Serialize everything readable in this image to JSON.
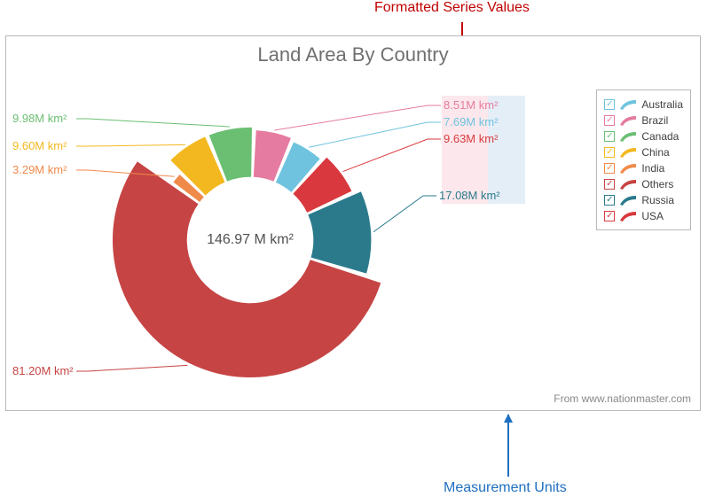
{
  "annotations": {
    "top": "Formatted Series Values",
    "bottom": "Measurement Units"
  },
  "chart": {
    "type": "donut",
    "title": "Land Area By Country",
    "title_color": "#707070",
    "title_fontsize": 22,
    "center_label": "146.97 M km²",
    "center_fontsize": 16,
    "center_color": "#505050",
    "background": "#ffffff",
    "frame_border": "#b8b8b8",
    "inner_radius_ratio": 0.46,
    "gap_deg": 2.2,
    "label_fontsize": 13,
    "source": "From www.nationmaster.com",
    "source_color": "#888888",
    "slices": [
      {
        "name": "Australia",
        "value": 7.69,
        "label": "7.69M km²",
        "color": "#6fc3df",
        "out_ratio": 0.78
      },
      {
        "name": "Brazil",
        "value": 8.51,
        "label": "8.51M km²",
        "color": "#e57ba0",
        "out_ratio": 0.8
      },
      {
        "name": "Canada",
        "value": 9.98,
        "label": "9.98M km²",
        "color": "#6bbf73",
        "out_ratio": 0.82
      },
      {
        "name": "China",
        "value": 9.6,
        "label": "9.60M km²",
        "color": "#f3b81f",
        "out_ratio": 0.82
      },
      {
        "name": "India",
        "value": 3.29,
        "label": "3.29M km²",
        "color": "#f08a4b",
        "out_ratio": 0.7
      },
      {
        "name": "Others",
        "value": 81.2,
        "label": "81.20M km²",
        "color": "#c64444",
        "out_ratio": 1.0
      },
      {
        "name": "Russia",
        "value": 17.08,
        "label": "17.08M km²",
        "color": "#2a7a8c",
        "out_ratio": 0.88
      },
      {
        "name": "USA",
        "value": 9.63,
        "label": "9.63M km²",
        "color": "#d9393e",
        "out_ratio": 0.82
      }
    ],
    "legend": {
      "border": "#b8b8b8",
      "checkbox_stroke_map": {
        "Australia": "#6fc3df",
        "Brazil": "#e57ba0",
        "Canada": "#6bbf73",
        "China": "#f3b81f",
        "India": "#f08a4b",
        "Others": "#c64444",
        "Russia": "#2a7a8c",
        "USA": "#d9393e"
      }
    },
    "highlights": {
      "pink": "#fce8ec",
      "blue": "#e4eef7"
    }
  }
}
